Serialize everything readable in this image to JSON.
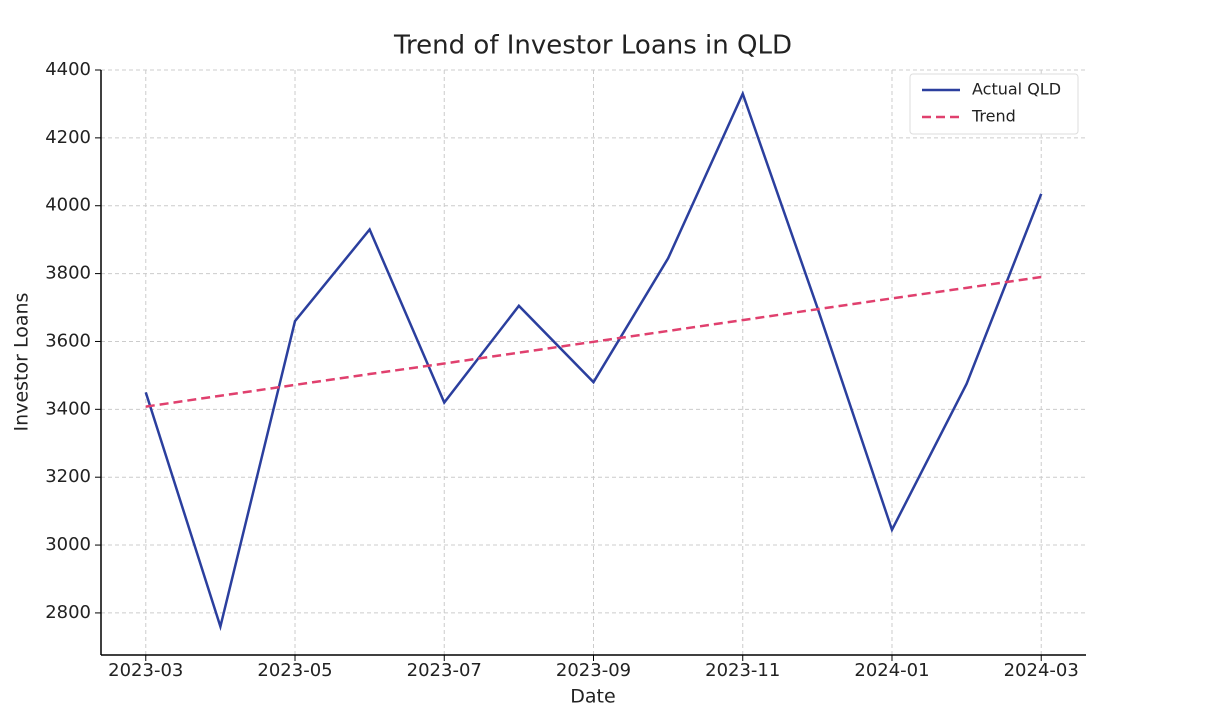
{
  "chart_data": {
    "type": "line",
    "title": "Trend of Investor Loans in QLD",
    "x_label": "Date",
    "y_label": "Investor Loans",
    "x": [
      "2023-03",
      "2023-04",
      "2023-05",
      "2023-06",
      "2023-07",
      "2023-08",
      "2023-09",
      "2023-10",
      "2023-11",
      "2023-12",
      "2024-01",
      "2024-02",
      "2024-03"
    ],
    "xticks": [
      "2023-03",
      "2023-05",
      "2023-07",
      "2023-09",
      "2023-11",
      "2024-01",
      "2024-03"
    ],
    "series": [
      {
        "name": "Actual QLD",
        "color": "#2b3f9e",
        "dash": false,
        "values": [
          3450,
          2760,
          3660,
          3930,
          3420,
          3705,
          3480,
          3845,
          4330,
          3700,
          3045,
          3475,
          4035
        ]
      },
      {
        "name": "Trend",
        "color": "#e0406e",
        "dash": true,
        "values": [
          3408,
          3440,
          3472,
          3504,
          3535,
          3567,
          3599,
          3631,
          3663,
          3695,
          3727,
          3758,
          3790
        ]
      }
    ],
    "ylim": [
      2676,
      4400
    ],
    "yticks": [
      2800,
      3000,
      3200,
      3400,
      3600,
      3800,
      4000,
      4200,
      4400
    ],
    "grid": true,
    "legend": "upper right"
  }
}
